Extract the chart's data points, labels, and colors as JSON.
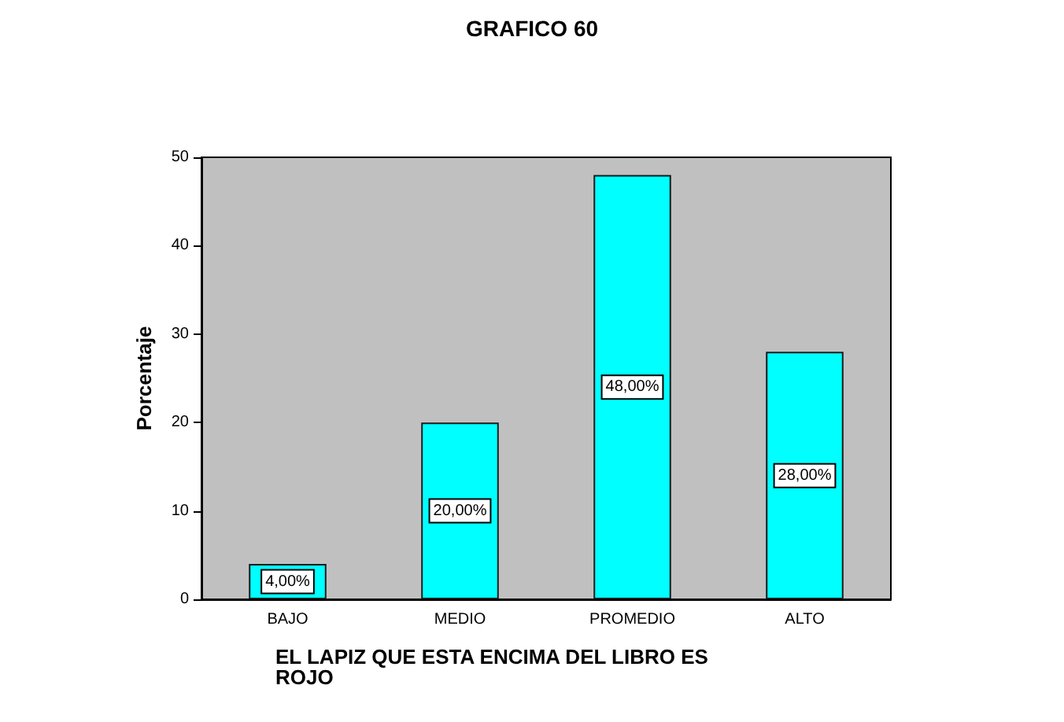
{
  "chart_data": {
    "type": "bar",
    "title": "GRAFICO 60",
    "xlabel": "EL LAPIZ QUE ESTA ENCIMA DEL LIBRO ES ROJO",
    "ylabel": "Porcentaje",
    "categories": [
      "BAJO",
      "MEDIO",
      "PROMEDIO",
      "ALTO"
    ],
    "values": [
      4,
      20,
      48,
      28
    ],
    "color": "#00ffff",
    "value_labels": [
      "4,00%",
      "20,00%",
      "48,00%",
      "28,00%"
    ],
    "ylim": [
      0,
      50
    ],
    "yticks": [
      0,
      10,
      20,
      30,
      40,
      50
    ],
    "grid": false
  }
}
